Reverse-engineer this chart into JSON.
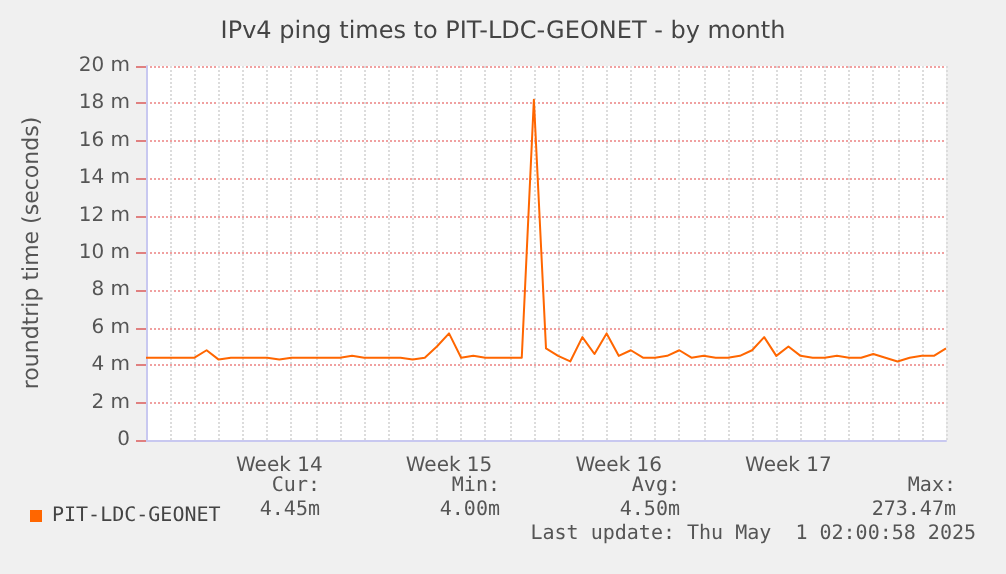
{
  "chart_data": {
    "type": "line",
    "title": "IPv4 ping times to PIT-LDC-GEONET - by month",
    "ylabel": "roundtrip time (seconds)",
    "categories": [
      null,
      null,
      null,
      null,
      null,
      null,
      null,
      null,
      null,
      null,
      null,
      "Week 14",
      null,
      null,
      null,
      null,
      null,
      null,
      null,
      null,
      null,
      null,
      null,
      null,
      null,
      "Week 15",
      null,
      null,
      null,
      null,
      null,
      null,
      null,
      null,
      null,
      null,
      null,
      null,
      null,
      "Week 16",
      null,
      null,
      null,
      null,
      null,
      null,
      null,
      null,
      null,
      null,
      null,
      null,
      null,
      "Week 17",
      null,
      null,
      null,
      null,
      null,
      null,
      null,
      null,
      null,
      null,
      null,
      null,
      null
    ],
    "ylim": [
      0,
      20
    ],
    "yticks": [
      0,
      {
        "value": 2,
        "label": "2 m"
      },
      {
        "value": 4,
        "label": "4 m"
      },
      {
        "value": 6,
        "label": "6 m"
      },
      {
        "value": 8,
        "label": "8 m"
      },
      {
        "value": 10,
        "label": "10 m"
      },
      {
        "value": 12,
        "label": "12 m"
      },
      {
        "value": 14,
        "label": "14 m"
      },
      {
        "value": 16,
        "label": "16 m"
      },
      {
        "value": 18,
        "label": "18 m"
      },
      {
        "value": 20,
        "label": "20 m"
      }
    ],
    "grid": true,
    "legend": "bottom left",
    "marker": "none",
    "line_style": "solid",
    "series": [
      {
        "name": "PIT-LDC-GEONET",
        "color": "#ff6600",
        "values": [
          4.4,
          4.4,
          4.4,
          4.4,
          4.4,
          4.8,
          4.3,
          4.4,
          4.4,
          4.4,
          4.4,
          4.3,
          4.4,
          4.4,
          4.4,
          4.4,
          4.4,
          4.5,
          4.4,
          4.4,
          4.4,
          4.4,
          4.3,
          4.4,
          5.0,
          5.7,
          4.4,
          4.5,
          4.4,
          4.4,
          4.4,
          4.4,
          18.2,
          4.9,
          4.5,
          4.2,
          5.5,
          4.6,
          5.7,
          4.5,
          4.8,
          4.4,
          4.4,
          4.5,
          4.8,
          4.4,
          4.5,
          4.4,
          4.4,
          4.5,
          4.8,
          5.5,
          4.5,
          5.0,
          4.5,
          4.4,
          4.4,
          4.5,
          4.4,
          4.4,
          4.6,
          4.4,
          4.2,
          4.4,
          4.5,
          4.5,
          4.9
        ]
      }
    ],
    "annotations": [
      "Cur:",
      "4.45m",
      "Min:",
      "4.00m",
      "Avg:",
      "4.50m",
      "Max:",
      "273.47m",
      "Last update: Thu May  1 02:00:58 2025"
    ]
  }
}
